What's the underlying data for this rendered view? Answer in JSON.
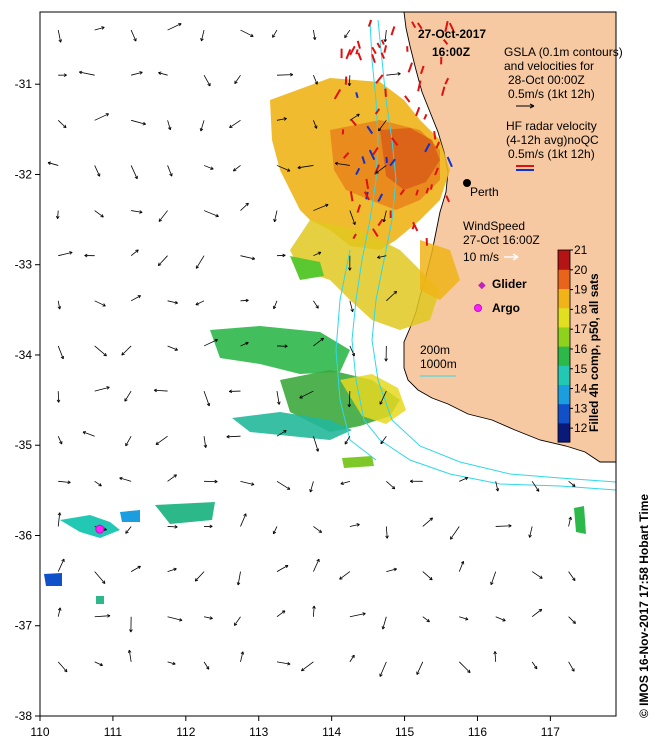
{
  "title": {
    "date": "27-Oct-2017",
    "time": "16:00Z"
  },
  "legend": {
    "gsla": [
      "GSLA (0.1m contours)",
      "and velocities for",
      "28-Oct 00:00Z",
      "0.5m/s (1kt 12h)"
    ],
    "hf": [
      "HF radar velocity",
      "(4-12h avg)noQC",
      "0.5m/s (1kt 12h)"
    ],
    "wind": [
      "WindSpeed",
      "27-Oct 16:00Z",
      "10 m/s"
    ],
    "glider": "Glider",
    "argo": "Argo",
    "isobaths": [
      "200m",
      "1000m"
    ]
  },
  "city": {
    "name": "Perth",
    "lon": 115.86,
    "lat": -31.95
  },
  "argo_float": {
    "lon": 110.82,
    "lat": -35.93
  },
  "colorbar": {
    "label": "Filled 4h comp, p50, all sats",
    "min": 11.3,
    "max": 21,
    "ticks": [
      12,
      13,
      14,
      15,
      16,
      17,
      18,
      19,
      20,
      21
    ],
    "colors": [
      "#0a1a7a",
      "#1050c8",
      "#1a9ee0",
      "#22c8b4",
      "#2db84a",
      "#8ed21e",
      "#e0e020",
      "#f0b418",
      "#e8641a",
      "#b41414"
    ]
  },
  "credit": "© IMOS 16-Nov-2017 17:58 Hobart Time",
  "axes": {
    "lon_range": [
      110,
      117.9
    ],
    "lat_range": [
      -38,
      -30.2
    ],
    "x_ticks": [
      110,
      111,
      112,
      113,
      114,
      115,
      116,
      117
    ],
    "y_ticks": [
      -31,
      -32,
      -33,
      -34,
      -35,
      -36,
      -37,
      -38
    ]
  },
  "colors": {
    "land": "#f7c9a3",
    "coast": "#000000",
    "isobath": "#2fd8e8",
    "hf_vec": "#e01010",
    "hf_vec_alt": "#1030d0",
    "glider": "#c020c0",
    "argo": "#ff20ff"
  },
  "icons": [
    "arrow-vector-icon",
    "glider-diamond-icon",
    "argo-circle-icon",
    "city-dot-icon"
  ]
}
